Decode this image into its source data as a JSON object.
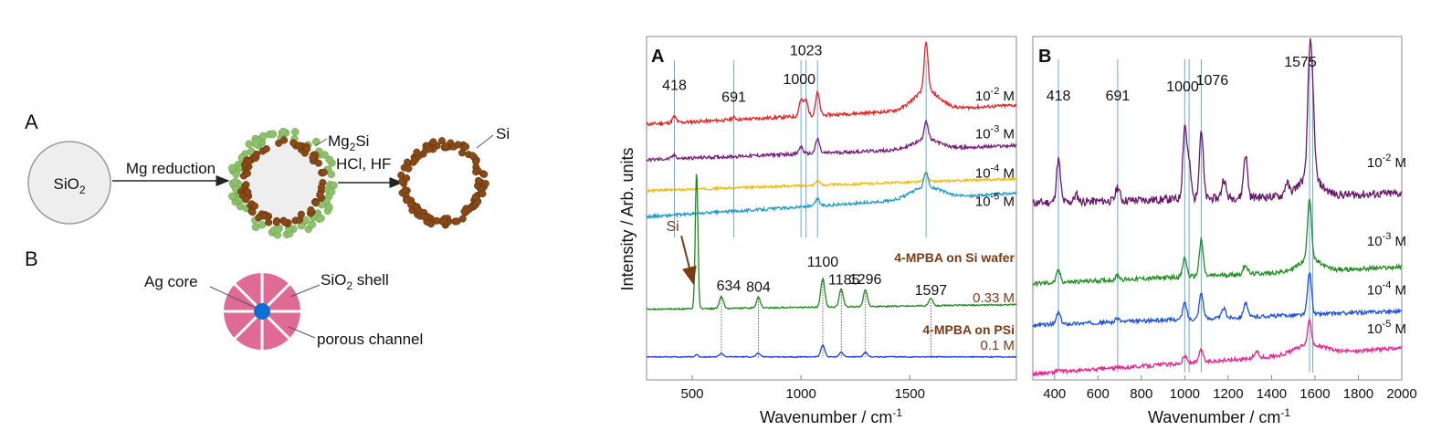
{
  "scheme": {
    "a": {
      "panel": "A",
      "sio2": "SiO",
      "sio2_sub": "2",
      "step1": "Mg reduction",
      "mg2si_a": "Mg",
      "mg2si_sub": "2",
      "mg2si_b": "Si",
      "step2": "HCl, HF",
      "si": "Si",
      "colors": {
        "green": "#8dc26a",
        "brown": "#8a4a16",
        "sphere": "#eeeeee"
      }
    },
    "b": {
      "panel": "B",
      "ag_core": "Ag core",
      "shell_a": "SiO",
      "shell_sub": "2",
      "shell_b": " shell",
      "channel": "porous channel",
      "colors": {
        "shell": "#df6a94",
        "core": "#0b6fd6"
      }
    }
  },
  "chart_data": [
    {
      "type": "line",
      "panel": "A",
      "xlabel": "Wavenumber / cm",
      "xlabel_sup": "-1",
      "ylabel": "Intensity / Arb. units",
      "xlim": [
        290,
        1990
      ],
      "xticks": [
        "500",
        "1000",
        "1500"
      ],
      "xtick_values": [
        500,
        1000,
        1500
      ],
      "peak_lines": [
        418,
        691,
        1000,
        1023,
        1076,
        1575
      ],
      "peak_labels": [
        {
          "text": "418",
          "x": 418,
          "lvl": 11.45
        },
        {
          "text": "691",
          "x": 691,
          "lvl": 10.95
        },
        {
          "text": "1000",
          "x": 992,
          "lvl": 11.7
        },
        {
          "text": "1023",
          "x": 1023,
          "lvl": 12.9
        }
      ],
      "series": [
        {
          "conc": "10",
          "conc_sup": "-2",
          "conc_unit": " M",
          "color": "#ee1d1d",
          "baseline": 10.0,
          "peaks": [
            [
              418,
              0.25
            ],
            [
              691,
              0.1
            ],
            [
              1000,
              0.7
            ],
            [
              1023,
              0.65
            ],
            [
              1076,
              0.95
            ],
            [
              1575,
              2.0
            ]
          ]
        },
        {
          "conc": "10",
          "conc_sup": "-3",
          "conc_unit": " M",
          "color": "#7a1a7a",
          "baseline": 8.5,
          "peaks": [
            [
              418,
              0.15
            ],
            [
              1000,
              0.3
            ],
            [
              1076,
              0.6
            ],
            [
              1575,
              0.8
            ]
          ]
        },
        {
          "conc": "10",
          "conc_sup": "-4",
          "conc_unit": " M",
          "color": "#f5b800",
          "baseline": 7.2,
          "peaks": [
            [
              1076,
              0.2
            ],
            [
              1575,
              0.4
            ]
          ]
        },
        {
          "conc": "10",
          "conc_sup": "-5",
          "conc_unit": " M",
          "color": "#1a9cd0",
          "baseline": 6.1,
          "peaks": [
            [
              1076,
              0.3
            ],
            [
              1575,
              0.65
            ]
          ]
        },
        {
          "conc": "0.33 M",
          "color": "#1e8a1e",
          "baseline": 2.2,
          "peaks": [
            [
              520,
              5.8
            ],
            [
              634,
              0.5
            ],
            [
              804,
              0.45
            ],
            [
              1100,
              1.2
            ],
            [
              1185,
              0.75
            ],
            [
              1296,
              0.7
            ],
            [
              1597,
              0.3
            ]
          ]
        },
        {
          "conc": "0.1 M",
          "color": "#1c3fe0",
          "baseline": 0.2,
          "peaks": [
            [
              520,
              0.1
            ],
            [
              634,
              0.15
            ],
            [
              804,
              0.15
            ],
            [
              1100,
              0.5
            ],
            [
              1185,
              0.2
            ],
            [
              1296,
              0.2
            ]
          ]
        }
      ],
      "sub_titles": [
        {
          "text": "4-MPBA on Si wafer",
          "lvl": 4.2
        },
        {
          "text": "4-MPBA on PSi",
          "lvl": 1.15
        }
      ],
      "si_arrow_label": "Si",
      "wafer_peaks": [
        {
          "text": "634",
          "x": 634
        },
        {
          "text": "804",
          "x": 804
        },
        {
          "text": "1100",
          "x": 1100
        },
        {
          "text": "1185",
          "x": 1185
        },
        {
          "text": "1296",
          "x": 1296
        },
        {
          "text": "1597",
          "x": 1597
        }
      ]
    },
    {
      "type": "line",
      "panel": "B",
      "xlabel": "Wavenumber / cm",
      "xlabel_sup": "-1",
      "xlim": [
        300,
        2000
      ],
      "xticks": [
        "400",
        "600",
        "800",
        "1000",
        "1200",
        "1400",
        "1600",
        "1800",
        "2000"
      ],
      "xtick_values": [
        400,
        600,
        800,
        1000,
        1200,
        1400,
        1600,
        1800,
        2000
      ],
      "peak_lines": [
        418,
        691,
        1000,
        1020,
        1076,
        1575,
        1590
      ],
      "peak_labels": [
        {
          "text": "418",
          "x": 418
        },
        {
          "text": "691",
          "x": 691
        },
        {
          "text": "1000",
          "x": 990
        },
        {
          "text": "1076",
          "x": 1076
        },
        {
          "text": "1575",
          "x": 1575
        }
      ],
      "series": [
        {
          "conc": "10",
          "conc_sup": "-2",
          "conc_unit": " M",
          "color": "#6b176b",
          "baseline": 7.3,
          "peaks": [
            [
              418,
              1.8
            ],
            [
              500,
              0.3
            ],
            [
              691,
              0.6
            ],
            [
              1000,
              3.0
            ],
            [
              1020,
              1.4
            ],
            [
              1076,
              2.9
            ],
            [
              1180,
              0.8
            ],
            [
              1280,
              1.8
            ],
            [
              1470,
              0.5
            ],
            [
              1575,
              4.8
            ],
            [
              1590,
              2.8
            ]
          ]
        },
        {
          "conc": "10",
          "conc_sup": "-3",
          "conc_unit": " M",
          "color": "#1f8f1f",
          "baseline": 3.9,
          "peaks": [
            [
              418,
              0.5
            ],
            [
              691,
              0.2
            ],
            [
              1000,
              0.8
            ],
            [
              1076,
              1.5
            ],
            [
              1280,
              0.4
            ],
            [
              1575,
              2.6
            ]
          ]
        },
        {
          "conc": "10",
          "conc_sup": "-4",
          "conc_unit": " M",
          "color": "#1c4fe6",
          "baseline": 2.15,
          "peaks": [
            [
              418,
              0.5
            ],
            [
              691,
              0.15
            ],
            [
              1000,
              0.7
            ],
            [
              1076,
              1.1
            ],
            [
              1180,
              0.4
            ],
            [
              1280,
              0.6
            ],
            [
              1575,
              1.8
            ]
          ]
        },
        {
          "conc": "10",
          "conc_sup": "-5",
          "conc_unit": " M",
          "color": "#f0218f",
          "baseline": 0.1,
          "peaks": [
            [
              418,
              0.1
            ],
            [
              1000,
              0.3
            ],
            [
              1076,
              0.5
            ],
            [
              1330,
              0.3
            ],
            [
              1575,
              1.0
            ]
          ]
        }
      ]
    }
  ]
}
